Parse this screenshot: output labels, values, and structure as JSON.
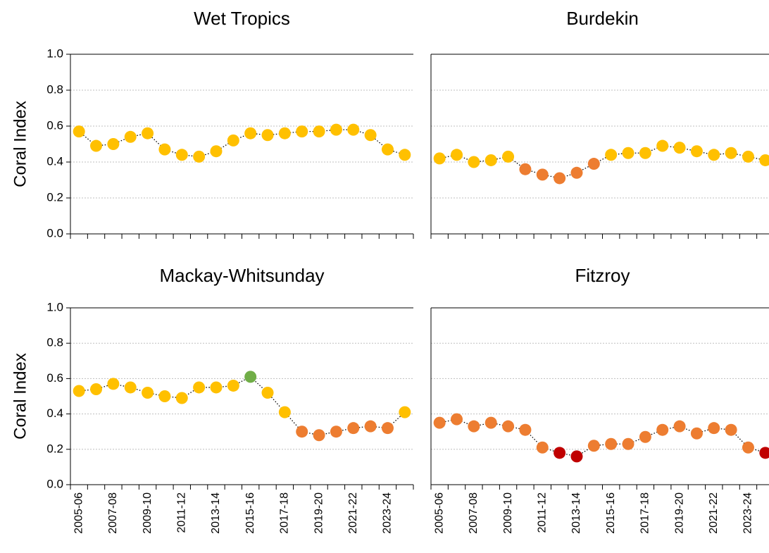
{
  "chart_data": [
    {
      "type": "line",
      "title": "Wet Tropics",
      "ylabel": "Coral Index",
      "categories": [
        null,
        null,
        null,
        null,
        null,
        null,
        null,
        null,
        null,
        null,
        null,
        null,
        null,
        null,
        null,
        null,
        null,
        null,
        null,
        null
      ],
      "values": [
        0.57,
        0.49,
        0.5,
        0.54,
        0.56,
        0.47,
        0.44,
        0.43,
        0.46,
        0.52,
        0.56,
        0.55,
        0.56,
        0.57,
        0.57,
        0.58,
        0.58,
        0.55,
        0.47,
        0.44
      ],
      "point_colors": [
        "#FFC000",
        "#FFC000",
        "#FFC000",
        "#FFC000",
        "#FFC000",
        "#FFC000",
        "#FFC000",
        "#FFC000",
        "#FFC000",
        "#FFC000",
        "#FFC000",
        "#FFC000",
        "#FFC000",
        "#FFC000",
        "#FFC000",
        "#FFC000",
        "#FFC000",
        "#FFC000",
        "#FFC000",
        "#FFC000"
      ],
      "line_color": "#000000",
      "ylim": [
        0,
        1
      ],
      "yticks": [
        {
          "value": 0,
          "label": "0.0"
        },
        {
          "value": 0.2,
          "label": "0.2"
        },
        {
          "value": 0.4,
          "label": "0.4"
        },
        {
          "value": 0.6,
          "label": "0.6"
        },
        {
          "value": 0.8,
          "label": "0.8"
        },
        {
          "value": 1,
          "label": "1.0"
        }
      ],
      "grid": true
    },
    {
      "type": "line",
      "title": "Burdekin",
      "categories": [
        null,
        null,
        null,
        null,
        null,
        null,
        null,
        null,
        null,
        null,
        null,
        null,
        null,
        null,
        null,
        null,
        null,
        null,
        null,
        null
      ],
      "values": [
        0.42,
        0.44,
        0.4,
        0.41,
        0.43,
        0.36,
        0.33,
        0.31,
        0.34,
        0.39,
        0.44,
        0.45,
        0.45,
        0.49,
        0.48,
        0.46,
        0.44,
        0.45,
        0.43,
        0.41
      ],
      "point_colors": [
        "#FFC000",
        "#FFC000",
        "#FFC000",
        "#FFC000",
        "#FFC000",
        "#ED7D31",
        "#ED7D31",
        "#ED7D31",
        "#ED7D31",
        "#ED7D31",
        "#FFC000",
        "#FFC000",
        "#FFC000",
        "#FFC000",
        "#FFC000",
        "#FFC000",
        "#FFC000",
        "#FFC000",
        "#FFC000",
        "#FFC000"
      ],
      "line_color": "#000000",
      "ylim": [
        0,
        1
      ],
      "yticks": [
        0,
        0.2,
        0.4,
        0.6,
        0.8,
        1
      ],
      "grid": true
    },
    {
      "type": "line",
      "title": "Mackay-Whitsunday",
      "ylabel": "Coral Index",
      "categories": [
        "2005-06",
        null,
        "2007-08",
        null,
        "2009-10",
        null,
        "2011-12",
        null,
        "2013-14",
        null,
        "2015-16",
        null,
        "2017-18",
        null,
        "2019-20",
        null,
        "2021-22",
        null,
        "2023-24",
        null
      ],
      "values": [
        0.53,
        0.54,
        0.57,
        0.55,
        0.52,
        0.5,
        0.49,
        0.55,
        0.55,
        0.56,
        0.61,
        0.52,
        0.41,
        0.3,
        0.28,
        0.3,
        0.32,
        0.33,
        0.32,
        0.41
      ],
      "point_colors": [
        "#FFC000",
        "#FFC000",
        "#FFC000",
        "#FFC000",
        "#FFC000",
        "#FFC000",
        "#FFC000",
        "#FFC000",
        "#FFC000",
        "#FFC000",
        "#70AD47",
        "#FFC000",
        "#FFC000",
        "#ED7D31",
        "#ED7D31",
        "#ED7D31",
        "#ED7D31",
        "#ED7D31",
        "#ED7D31",
        "#FFC000"
      ],
      "line_color": "#000000",
      "ylim": [
        0,
        1
      ],
      "yticks": [
        {
          "value": 0,
          "label": "0.0"
        },
        {
          "value": 0.2,
          "label": "0.2"
        },
        {
          "value": 0.4,
          "label": "0.4"
        },
        {
          "value": 0.6,
          "label": "0.6"
        },
        {
          "value": 0.8,
          "label": "0.8"
        },
        {
          "value": 1,
          "label": "1.0"
        }
      ],
      "grid": true
    },
    {
      "type": "line",
      "title": "Fitzroy",
      "categories": [
        "2005-06",
        null,
        "2007-08",
        null,
        "2009-10",
        null,
        "2011-12",
        null,
        "2013-14",
        null,
        "2015-16",
        null,
        "2017-18",
        null,
        "2019-20",
        null,
        "2021-22",
        null,
        "2023-24",
        null
      ],
      "values": [
        0.35,
        0.37,
        0.33,
        0.35,
        0.33,
        0.31,
        0.21,
        0.18,
        0.16,
        0.22,
        0.23,
        0.23,
        0.27,
        0.31,
        0.33,
        0.29,
        0.32,
        0.31,
        0.21,
        0.18
      ],
      "point_colors": [
        "#ED7D31",
        "#ED7D31",
        "#ED7D31",
        "#ED7D31",
        "#ED7D31",
        "#ED7D31",
        "#ED7D31",
        "#C00000",
        "#C00000",
        "#ED7D31",
        "#ED7D31",
        "#ED7D31",
        "#ED7D31",
        "#ED7D31",
        "#ED7D31",
        "#ED7D31",
        "#ED7D31",
        "#ED7D31",
        "#ED7D31",
        "#C00000"
      ],
      "line_color": "#000000",
      "ylim": [
        0,
        1
      ],
      "yticks": [
        0,
        0.2,
        0.4,
        0.6,
        0.8,
        1
      ],
      "grid": true
    }
  ]
}
